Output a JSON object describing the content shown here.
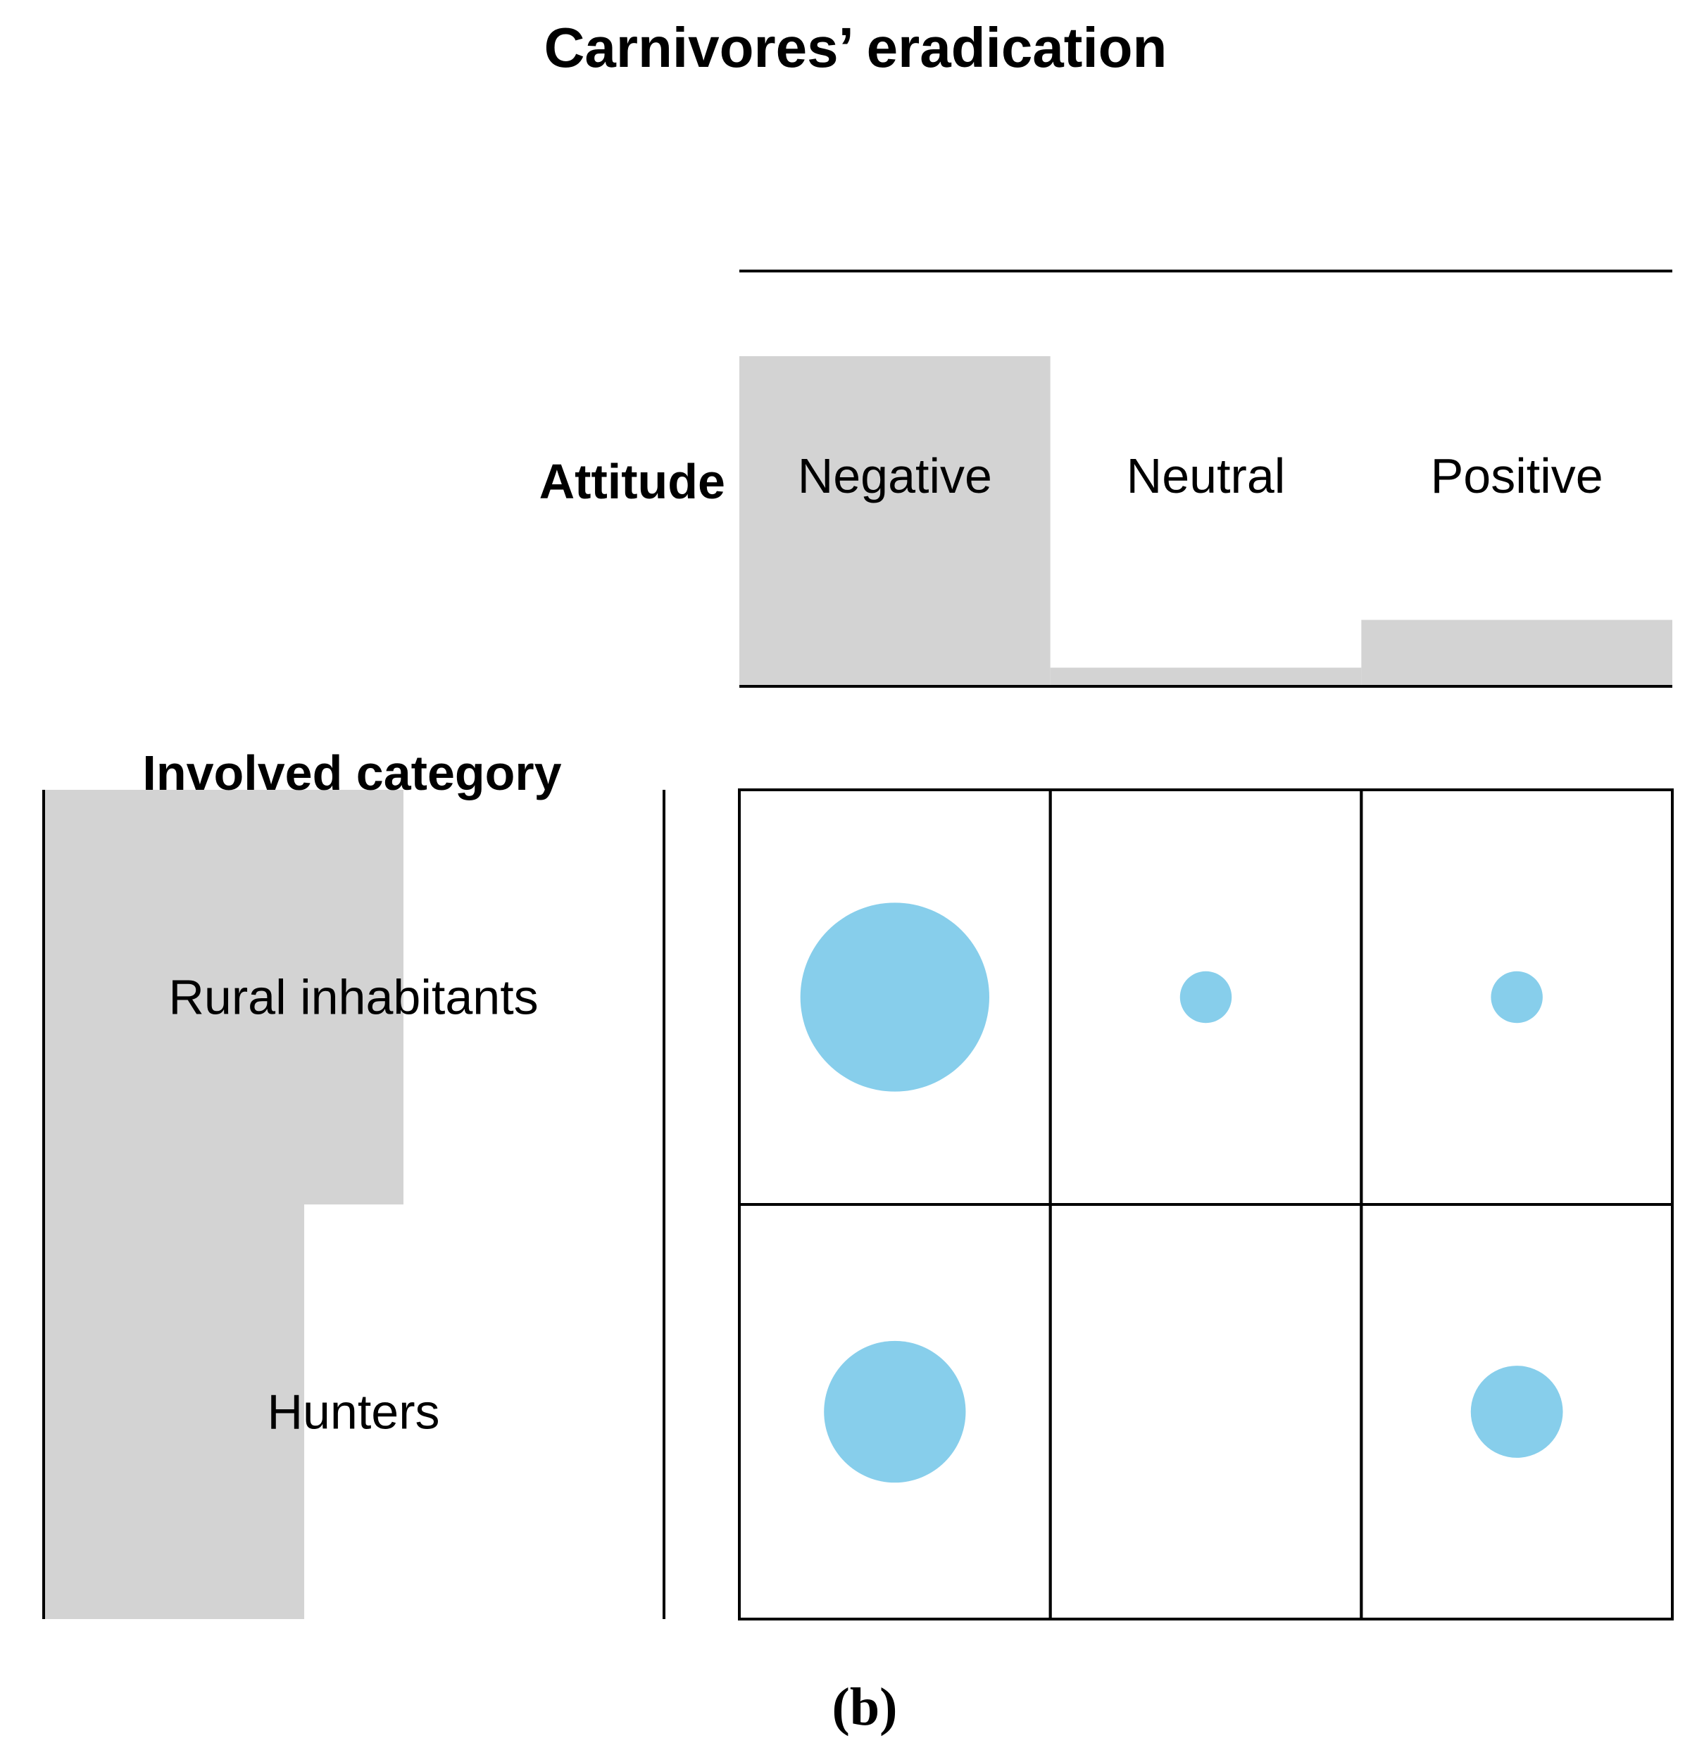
{
  "chart_data": {
    "type": "balloon",
    "title": "Carnivores’ eradication",
    "panel_label": "(b)",
    "column_variable": "Attitude",
    "row_variable": "Involved category",
    "columns": [
      "Negative",
      "Neutral",
      "Positive"
    ],
    "rows": [
      "Rural inhabitants",
      "Hunters"
    ],
    "column_proportions": [
      0.795,
      0.045,
      0.16
    ],
    "row_proportions": [
      0.58,
      0.42
    ],
    "values": [
      [
        0.8,
        0.06,
        0.06
      ],
      [
        0.45,
        0.0,
        0.19
      ]
    ],
    "colors": {
      "bubble": "#87ceeb",
      "bar": "#d3d3d3",
      "line": "#000000"
    }
  }
}
